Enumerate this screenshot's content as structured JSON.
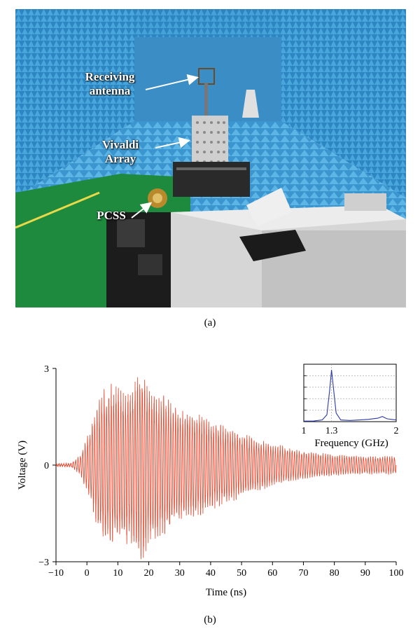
{
  "panel_a": {
    "labels": {
      "receiving_line1": "Receiving",
      "receiving_line2": "antenna",
      "vivaldi_line1": "Vivaldi",
      "vivaldi_line2": "Array",
      "pcss": "PCSS"
    },
    "caption": "(a)"
  },
  "panel_b": {
    "caption": "(b)"
  },
  "chart_data": [
    {
      "type": "line",
      "xlabel": "Time (ns)",
      "ylabel": "Voltage (V)",
      "xlim": [
        -10,
        100
      ],
      "ylim": [
        -3,
        3
      ],
      "x_ticks": [
        -10,
        0,
        10,
        20,
        30,
        40,
        50,
        60,
        70,
        80,
        90,
        100
      ],
      "x_tick_labels": [
        "−10",
        "0",
        "10",
        "20",
        "30",
        "40",
        "50",
        "60",
        "70",
        "80",
        "90",
        "100"
      ],
      "y_ticks": [
        -3,
        0,
        3
      ],
      "y_tick_labels": [
        "−3",
        "0",
        "3"
      ],
      "grid": false,
      "line_color": "#e8442a",
      "oscillation_frequency_ghz": 1.3,
      "envelope": {
        "time_ns": [
          -10,
          -5,
          -2,
          0,
          2,
          5,
          8,
          12,
          15,
          18,
          20,
          25,
          30,
          35,
          40,
          50,
          60,
          70,
          80,
          90,
          100
        ],
        "amplitude_v": [
          0.03,
          0.05,
          0.3,
          0.8,
          1.4,
          2.2,
          2.3,
          2.2,
          2.3,
          2.8,
          2.2,
          2.0,
          1.6,
          1.5,
          1.3,
          0.9,
          0.6,
          0.4,
          0.3,
          0.25,
          0.25
        ]
      }
    },
    {
      "type": "line",
      "xlabel": "Frequency (GHz)",
      "x_ticks": [
        1,
        1.3,
        2
      ],
      "x_tick_labels": [
        "1",
        "1.3",
        "2"
      ],
      "xlim": [
        1,
        2
      ],
      "grid": true,
      "line_color": "#2b3aa8",
      "peak_frequency_ghz": 1.3,
      "x": [
        1.0,
        1.1,
        1.2,
        1.25,
        1.28,
        1.3,
        1.32,
        1.35,
        1.4,
        1.5,
        1.6,
        1.7,
        1.8,
        1.85,
        1.9,
        2.0
      ],
      "y": [
        0.01,
        0.01,
        0.03,
        0.12,
        0.55,
        0.9,
        0.6,
        0.15,
        0.03,
        0.02,
        0.03,
        0.04,
        0.06,
        0.09,
        0.05,
        0.03
      ]
    }
  ]
}
